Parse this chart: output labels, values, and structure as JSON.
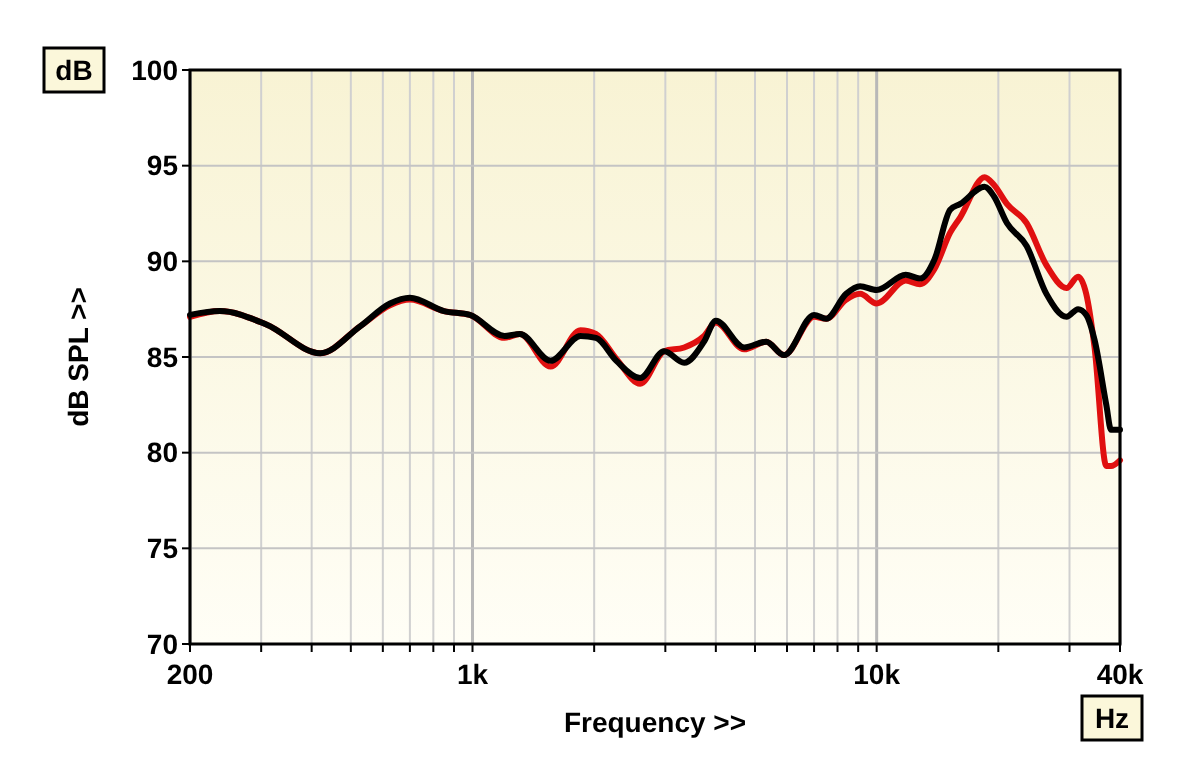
{
  "chart_data": {
    "type": "line",
    "xlabel": "Frequency >>",
    "ylabel": "dB SPL >>",
    "annotations": [
      "dB",
      "Hz"
    ],
    "log": "x",
    "grid": true,
    "x": [
      200,
      237,
      309,
      420,
      527,
      625,
      700,
      850,
      985,
      1200,
      1310,
      1560,
      1850,
      2020,
      2270,
      2600,
      2980,
      3340,
      3740,
      4000,
      4700,
      5330,
      5900,
      7000,
      7500,
      8400,
      9100,
      10000,
      11800,
      12800,
      13900,
      15200,
      16100,
      18500,
      19500,
      21000,
      23500,
      26300,
      29500,
      31500,
      33000,
      34600,
      37000,
      38000,
      40000
    ],
    "series": [
      {
        "color": "#e01010",
        "values": [
          87.1,
          87.4,
          86.7,
          85.2,
          86.6,
          87.7,
          88.0,
          87.4,
          87.2,
          86.0,
          86.2,
          84.5,
          86.4,
          86.2,
          84.9,
          83.6,
          85.3,
          85.5,
          86.1,
          86.8,
          85.4,
          85.8,
          85.1,
          87.1,
          87.0,
          88.0,
          88.3,
          87.8,
          89.0,
          88.8,
          89.6,
          91.5,
          92.3,
          94.4,
          94.0,
          93.0,
          92.0,
          89.8,
          88.6,
          89.2,
          88.3,
          85.5,
          79.3,
          79.3,
          79.6
        ]
      },
      {
        "color": "#000000",
        "values": [
          87.2,
          87.4,
          86.7,
          85.2,
          86.6,
          87.8,
          88.1,
          87.4,
          87.2,
          86.1,
          86.2,
          84.8,
          86.1,
          86.0,
          84.8,
          83.9,
          85.3,
          84.7,
          85.8,
          86.9,
          85.5,
          85.8,
          85.1,
          87.2,
          87.0,
          88.3,
          88.7,
          88.5,
          89.3,
          89.1,
          90.1,
          92.7,
          93.0,
          93.9,
          93.4,
          92.0,
          90.8,
          88.3,
          87.1,
          87.5,
          87.2,
          85.9,
          82.5,
          81.2,
          81.2
        ]
      }
    ],
    "xlim": [
      200,
      40000
    ],
    "xticks": [
      {
        "value": 200,
        "label": "200"
      },
      {
        "value": 300,
        "label": null
      },
      {
        "value": 400,
        "label": null
      },
      {
        "value": 500,
        "label": null
      },
      {
        "value": 600,
        "label": null
      },
      {
        "value": 700,
        "label": null
      },
      {
        "value": 800,
        "label": null
      },
      {
        "value": 900,
        "label": null
      },
      {
        "value": 1000,
        "label": "1k"
      },
      {
        "value": 2000,
        "label": null
      },
      {
        "value": 3000,
        "label": null
      },
      {
        "value": 4000,
        "label": null
      },
      {
        "value": 5000,
        "label": null
      },
      {
        "value": 6000,
        "label": null
      },
      {
        "value": 7000,
        "label": null
      },
      {
        "value": 8000,
        "label": null
      },
      {
        "value": 9000,
        "label": null
      },
      {
        "value": 10000,
        "label": "10k"
      },
      {
        "value": 20000,
        "label": null
      },
      {
        "value": 30000,
        "label": null
      },
      {
        "value": 40000,
        "label": "40k"
      }
    ],
    "ylim": [
      70,
      100
    ],
    "yticks": [
      70,
      75,
      80,
      85,
      90,
      95,
      100
    ],
    "line_style": "solid",
    "marker": "none"
  }
}
